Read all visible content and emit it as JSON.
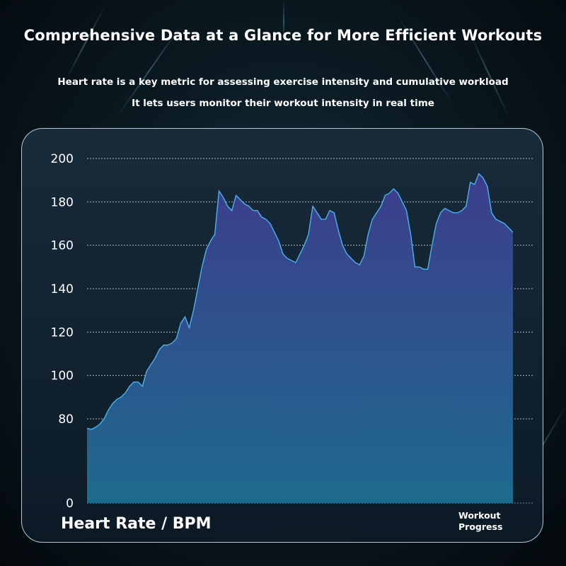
{
  "header": {
    "title": "Comprehensive Data at a Glance for More Efficient Workouts",
    "subtitle_line1": "Heart rate is a key metric for assessing exercise intensity and cumulative workload",
    "subtitle_line2": "It lets users monitor their workout intensity in real time"
  },
  "colors": {
    "area_top": "#3d3d8c",
    "area_bottom": "#1e6a8e",
    "line": "#4ab3f0",
    "grid": "#c8d6e0"
  },
  "chart_data": {
    "type": "area",
    "title": "",
    "ylabel": "Heart Rate / BPM",
    "xlabel": "Workout Progress",
    "y_ticks": [
      "0",
      "80",
      "100",
      "120",
      "140",
      "160",
      "180",
      "200"
    ],
    "y_tick_values": [
      0,
      80,
      100,
      120,
      140,
      160,
      180,
      200
    ],
    "ylim": [
      0,
      200
    ],
    "grid": true,
    "x": [
      0,
      1,
      2,
      3,
      4,
      5,
      6,
      7,
      8,
      9,
      10,
      11,
      12,
      13,
      14,
      15,
      16,
      17,
      18,
      19,
      20,
      21,
      22,
      23,
      24,
      25,
      26,
      27,
      28,
      29,
      30,
      31,
      32,
      33,
      34,
      35,
      36,
      37,
      38,
      39,
      40,
      41,
      42,
      43,
      44,
      45,
      46,
      47,
      48,
      49,
      50,
      51,
      52,
      53,
      54,
      55,
      56,
      57,
      58,
      59,
      60,
      61,
      62,
      63,
      64,
      65,
      66,
      67,
      68,
      69,
      70,
      71,
      72,
      73,
      74,
      75,
      76,
      77,
      78,
      79,
      80,
      81,
      82,
      83,
      84,
      85,
      86,
      87,
      88,
      89,
      90,
      91,
      92,
      93,
      94,
      95,
      96,
      97,
      98,
      99,
      100
    ],
    "series": [
      {
        "values": [
          71,
          70,
          72,
          75,
          80,
          84,
          87,
          89,
          90,
          92,
          95,
          97,
          97,
          95,
          102,
          105,
          108,
          112,
          114,
          114,
          115,
          117,
          124,
          127,
          122,
          130,
          140,
          150,
          158,
          162,
          165,
          185,
          182,
          178,
          176,
          183,
          181,
          179,
          178,
          176,
          176,
          173,
          172,
          170,
          166,
          162,
          156,
          154,
          153,
          152,
          156,
          160,
          165,
          178,
          175,
          172,
          172,
          176,
          175,
          167,
          160,
          156,
          154,
          152,
          151,
          155,
          165,
          172,
          175,
          178,
          183,
          184,
          186,
          184,
          180,
          176,
          165,
          150,
          150,
          149,
          149,
          160,
          170,
          175,
          177,
          176,
          175,
          175,
          176,
          178,
          189,
          188,
          193,
          191,
          187,
          175,
          172,
          171,
          170,
          168,
          166
        ]
      }
    ]
  },
  "labels": {
    "y_axis_title": "Heart Rate / BPM",
    "x_axis_title_line1": "Workout",
    "x_axis_title_line2": "Progress"
  }
}
